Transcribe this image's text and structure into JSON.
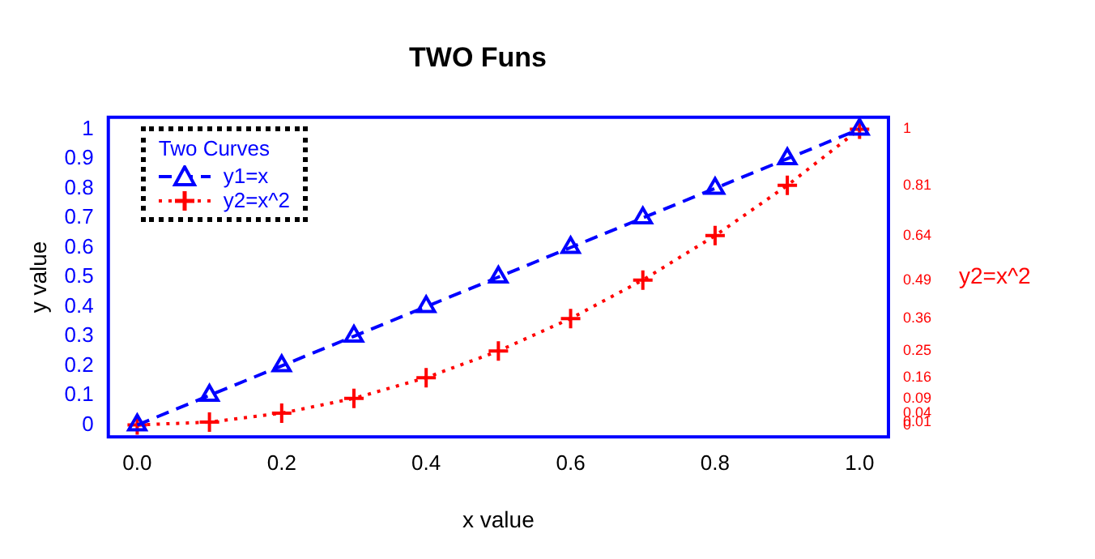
{
  "chart_data": {
    "type": "line",
    "title": "TWO Funs",
    "xlabel": "x value",
    "ylabel": "y value",
    "y2label": "y2=x^2",
    "legend_title": "Two Curves",
    "x": [
      0,
      0.1,
      0.2,
      0.3,
      0.4,
      0.5,
      0.6,
      0.7,
      0.8,
      0.9,
      1
    ],
    "series": [
      {
        "name": "y1=x",
        "color": "#0000ff",
        "values": [
          0,
          0.1,
          0.2,
          0.3,
          0.4,
          0.5,
          0.6,
          0.7,
          0.8,
          0.9,
          1
        ],
        "marker": "triangle",
        "line_style": "dashed"
      },
      {
        "name": "y2=x^2",
        "color": "#ff0000",
        "values": [
          0,
          0.01,
          0.04,
          0.09,
          0.16,
          0.25,
          0.36,
          0.49,
          0.64,
          0.81,
          1
        ],
        "marker": "cross",
        "line_style": "dotted",
        "axis": "y2"
      }
    ],
    "xlim": [
      -0.04,
      1.04
    ],
    "xticks": [
      {
        "value": 0,
        "label": "0.0"
      },
      {
        "value": 0.2,
        "label": "0.2"
      },
      {
        "value": 0.4,
        "label": "0.4"
      },
      {
        "value": 0.6,
        "label": "0.6"
      },
      {
        "value": 0.8,
        "label": "0.8"
      },
      {
        "value": 1,
        "label": "1.0"
      }
    ],
    "ylim": [
      -0.04,
      1.04
    ],
    "yticks": [
      0,
      0.1,
      0.2,
      0.3,
      0.4,
      0.5,
      0.6,
      0.7,
      0.8,
      0.9,
      1
    ],
    "y2lim": [
      -0.04,
      1.04
    ],
    "y2ticks": [
      0,
      0.01,
      0.04,
      0.09,
      0.16,
      0.25,
      0.36,
      0.49,
      0.64,
      0.81,
      1
    ],
    "grid": false,
    "legend": "top left"
  }
}
